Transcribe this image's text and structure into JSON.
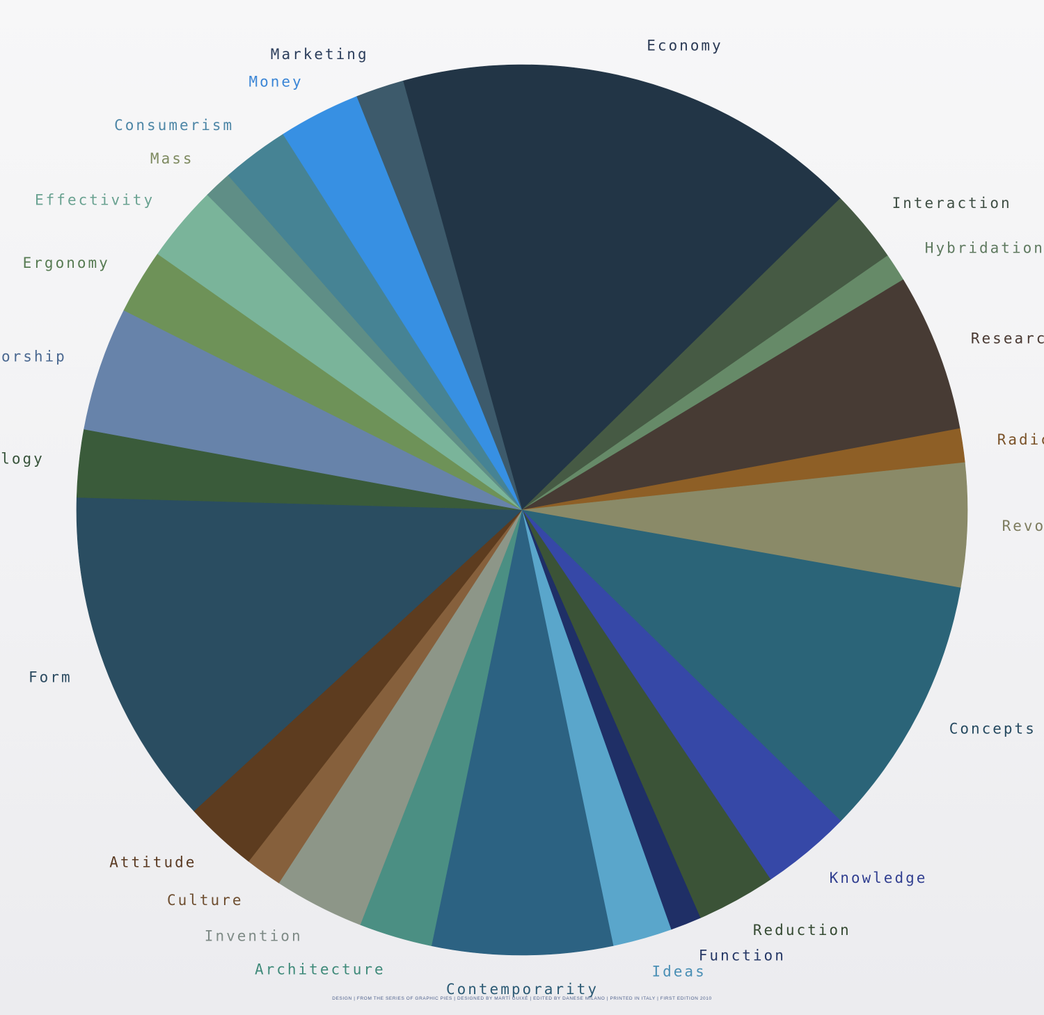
{
  "chart_data": {
    "type": "pie",
    "title": "",
    "start_angle_deg": -105.5,
    "direction": "clockwise",
    "slices": [
      {
        "label": "Economy",
        "value": 16.6,
        "color": "#223546",
        "label_color": "#2b3a55"
      },
      {
        "label": "Interaction",
        "value": 2.6,
        "color": "#465a44",
        "label_color": "#3f4f44"
      },
      {
        "label": "Hybridation",
        "value": 1.0,
        "color": "#668a68",
        "label_color": "#5f7a60"
      },
      {
        "label": "Research",
        "value": 5.6,
        "color": "#473b34",
        "label_color": "#4a3a33"
      },
      {
        "label": "Radicality",
        "value": 1.2,
        "color": "#8e5f26",
        "label_color": "#7a5228"
      },
      {
        "label": "Revolution",
        "value": 4.4,
        "color": "#8a8a68",
        "label_color": "#7d7c5e"
      },
      {
        "label": "Concepts",
        "value": 9.3,
        "color": "#2b6478",
        "label_color": "#264a60"
      },
      {
        "label": "Knowledge",
        "value": 3.2,
        "color": "#3648a7",
        "label_color": "#313f90"
      },
      {
        "label": "Reduction",
        "value": 2.8,
        "color": "#3b5337",
        "label_color": "#354a32"
      },
      {
        "label": "Function",
        "value": 1.1,
        "color": "#1f2f66",
        "label_color": "#263866"
      },
      {
        "label": "Ideas",
        "value": 2.1,
        "color": "#5aa6cb",
        "label_color": "#4a8fb5"
      },
      {
        "label": "Contemporarity",
        "value": 6.4,
        "color": "#2c6282",
        "label_color": "#2c5a74"
      },
      {
        "label": "Architecture",
        "value": 2.6,
        "color": "#4b8f83",
        "label_color": "#3f8a7a"
      },
      {
        "label": "Invention",
        "value": 3.2,
        "color": "#8d9688",
        "label_color": "#7e8a86"
      },
      {
        "label": "Culture",
        "value": 1.3,
        "color": "#86603c",
        "label_color": "#6e4e30"
      },
      {
        "label": "Attitude",
        "value": 2.6,
        "color": "#5d3c1f",
        "label_color": "#5a3a22"
      },
      {
        "label": "Form",
        "value": 12.0,
        "color": "#2a4d61",
        "label_color": "#2b4a60"
      },
      {
        "label": "Ideology",
        "value": 2.4,
        "color": "#3a5b3a",
        "label_color": "#37533a"
      },
      {
        "label": "Authorship",
        "value": 4.4,
        "color": "#6783aa",
        "label_color": "#4a6890"
      },
      {
        "label": "Ergonomy",
        "value": 2.3,
        "color": "#6e9258",
        "label_color": "#567a52"
      },
      {
        "label": "Effectivity",
        "value": 2.7,
        "color": "#7ab49a",
        "label_color": "#6aa291"
      },
      {
        "label": "Mass",
        "value": 1.0,
        "color": "#5f8e86",
        "label_color": "#7e8a60"
      },
      {
        "label": "Consumerism",
        "value": 2.4,
        "color": "#468394",
        "label_color": "#4d86a6"
      },
      {
        "label": "Money",
        "value": 2.9,
        "color": "#3790e3",
        "label_color": "#3c86d6"
      },
      {
        "label": "Marketing",
        "value": 1.7,
        "color": "#3d5a6b",
        "label_color": "#2c3e5c"
      }
    ]
  },
  "footer": {
    "text": "DESIGN | FROM THE SERIES OF GRAPHIC PIES | DESIGNED BY MARTÍ GUIXÉ | EDITED BY DANESE MILANO | PRINTED IN ITALY | FIRST EDITION 2010"
  }
}
